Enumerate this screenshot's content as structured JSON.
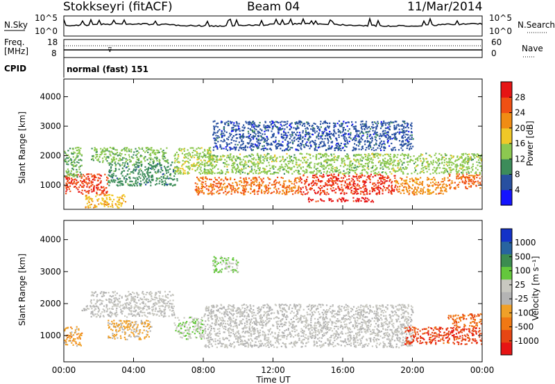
{
  "header": {
    "station": "Stokkseyri (fitACF)",
    "beam": "Beam 04",
    "date": "11/Mar/2014"
  },
  "top_panels": {
    "nsky_label": "N.Sky",
    "nsky_ticks": [
      "10^5",
      "10^0"
    ],
    "nsearch_label": "N.Search",
    "nsearch_ticks": [
      "10^5",
      "10^0"
    ],
    "freq_label": "Freq.",
    "freq_unit": "[MHz]",
    "freq_ticks": [
      "18",
      "8"
    ],
    "nave_label": "Nave",
    "nave_ticks": [
      "60",
      "0"
    ],
    "cpid_label": "CPID",
    "cpid_value": "normal (fast) 151"
  },
  "colors": {
    "power": [
      "#1414ff",
      "#2850a0",
      "#3c8c5a",
      "#8cc850",
      "#f0c828",
      "#f08c14",
      "#f05014",
      "#e61414"
    ],
    "velocity": [
      "#1432c8",
      "#2864a0",
      "#3c8c50",
      "#64c83c",
      "#c8c8c0",
      "#b4b4b4",
      "#f0a028",
      "#f07814",
      "#e64614",
      "#e61414"
    ]
  },
  "chart_data": [
    {
      "type": "heatmap",
      "title": "",
      "ylabel": "Slant Range [km]",
      "xlabel": "",
      "x_ticks": [
        "00:00",
        "04:00",
        "08:00",
        "12:00",
        "16:00",
        "20:00",
        "00:00"
      ],
      "y_ticks": [
        "1000",
        "2000",
        "3000",
        "4000"
      ],
      "xlim": [
        0,
        24
      ],
      "ylim": [
        180,
        4600
      ],
      "colorbar": {
        "label": "Power [dB]",
        "ticks": [
          "4",
          "8",
          "12",
          "16",
          "20",
          "24",
          "28"
        ],
        "range": [
          0,
          32
        ]
      },
      "features": [
        {
          "x": [
            0,
            2.5
          ],
          "y": [
            700,
            1400
          ],
          "value": 27
        },
        {
          "x": [
            0,
            1
          ],
          "y": [
            1300,
            2300
          ],
          "value": 12
        },
        {
          "x": [
            1.5,
            6
          ],
          "y": [
            1800,
            2300
          ],
          "value": 13
        },
        {
          "x": [
            2.5,
            6.5
          ],
          "y": [
            1000,
            1800
          ],
          "value": 10
        },
        {
          "x": [
            1.2,
            3.5
          ],
          "y": [
            250,
            700
          ],
          "value": 19
        },
        {
          "x": [
            6.3,
            8.5
          ],
          "y": [
            1400,
            2300
          ],
          "value": 15
        },
        {
          "x": [
            7.5,
            13.5
          ],
          "y": [
            700,
            1300
          ],
          "value": 24
        },
        {
          "x": [
            13.5,
            19
          ],
          "y": [
            700,
            1400
          ],
          "value": 28
        },
        {
          "x": [
            14,
            17.8
          ],
          "y": [
            450,
            600
          ],
          "value": 30
        },
        {
          "x": [
            8,
            24
          ],
          "y": [
            1400,
            2100
          ],
          "value": 14
        },
        {
          "x": [
            19,
            22
          ],
          "y": [
            700,
            1300
          ],
          "value": 22
        },
        {
          "x": [
            22,
            24
          ],
          "y": [
            900,
            1400
          ],
          "value": 25
        },
        {
          "x": [
            8.5,
            20
          ],
          "y": [
            2200,
            3200
          ],
          "value": 6
        }
      ]
    },
    {
      "type": "heatmap",
      "title": "",
      "ylabel": "Slant Range [km]",
      "xlabel": "Time UT",
      "x_ticks": [
        "00:00",
        "04:00",
        "08:00",
        "12:00",
        "16:00",
        "20:00",
        "00:00"
      ],
      "y_ticks": [
        "1000",
        "2000",
        "3000",
        "4000"
      ],
      "xlim": [
        0,
        24
      ],
      "ylim": [
        180,
        4600
      ],
      "colorbar": {
        "label": "Velocity [m s⁻¹]",
        "ticks": [
          "1000",
          "500",
          "100",
          "25",
          "-25",
          "-100",
          "-500",
          "-1000"
        ],
        "range": [
          -1250,
          1250
        ]
      },
      "features": [
        {
          "x": [
            0,
            1
          ],
          "y": [
            700,
            1300
          ],
          "value": -400
        },
        {
          "x": [
            1,
            1.5
          ],
          "y": [
            1800,
            2000
          ],
          "value": 20
        },
        {
          "x": [
            1.5,
            6.3
          ],
          "y": [
            1600,
            2400
          ],
          "value": 10
        },
        {
          "x": [
            2.5,
            5
          ],
          "y": [
            900,
            1500
          ],
          "value": -300
        },
        {
          "x": [
            6.3,
            8
          ],
          "y": [
            900,
            1600
          ],
          "value": 200
        },
        {
          "x": [
            8,
            20
          ],
          "y": [
            650,
            2000
          ],
          "value": 5
        },
        {
          "x": [
            19.5,
            24
          ],
          "y": [
            750,
            1300
          ],
          "value": -900
        },
        {
          "x": [
            22,
            24
          ],
          "y": [
            1300,
            1700
          ],
          "value": -700
        },
        {
          "x": [
            8.5,
            10
          ],
          "y": [
            3000,
            3500
          ],
          "value": 300
        }
      ]
    }
  ]
}
